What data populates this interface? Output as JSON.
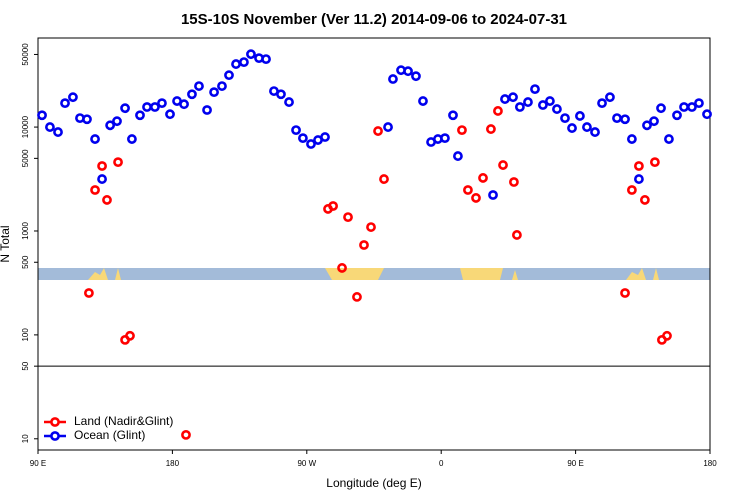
{
  "chart_data": {
    "type": "scatter",
    "title": "15S-10S November (Ver 11.2)   2014-09-06 to 2024-07-31",
    "x_label": "Longitude (deg E)",
    "y_label": "N Total",
    "log_scale": true,
    "xlim": [
      90,
      540
    ],
    "xticks": [
      {
        "value": 90,
        "label": "90 E"
      },
      {
        "value": 180,
        "label": "180"
      },
      {
        "value": 270,
        "label": "90 W"
      },
      {
        "value": 360,
        "label": "0"
      },
      {
        "value": 450,
        "label": "90 E"
      },
      {
        "value": 540,
        "label": "180"
      }
    ],
    "ylim": [
      7.8,
      72000
    ],
    "yticks": [
      10,
      50,
      100,
      500,
      1000,
      5000,
      10000,
      50000
    ],
    "hline": 50,
    "legend": "lower left",
    "series": [
      {
        "name": "Land (Nadir&Glint)",
        "color": "#ff0000",
        "x": [
          124.1,
          128.2,
          132.9,
          136.2,
          143.6,
          148.3,
          151.6,
          189.1,
          284.2,
          287.6,
          293.6,
          297.6,
          303.6,
          308.3,
          313.0,
          317.7,
          321.7,
          373.9,
          377.9,
          383.3,
          388.0,
          393.3,
          398.0,
          401.4,
          408.7,
          410.7,
          483.1,
          487.7,
          492.4,
          496.4,
          503.1,
          507.8,
          511.2
        ],
        "values": [
          253,
          2480,
          4220,
          1990,
          4600,
          89.5,
          98,
          10.9,
          1630,
          1740,
          441,
          1360,
          232,
          733,
          1090,
          9160,
          3160,
          9350,
          2480,
          2080,
          3240,
          9570,
          14300,
          4310,
          2960,
          916,
          253,
          2480,
          4220,
          1990,
          4600,
          89.5,
          98
        ]
      },
      {
        "name": "Ocean (Glint)",
        "color": "#0000ee",
        "x": [
          92.7,
          98.0,
          103.4,
          108.1,
          113.4,
          118.1,
          122.8,
          128.2,
          132.9,
          138.3,
          142.9,
          148.3,
          152.9,
          158.3,
          163.0,
          168.3,
          173.0,
          178.4,
          183.1,
          187.8,
          193.1,
          197.8,
          203.2,
          207.9,
          213.2,
          217.9,
          222.6,
          227.9,
          232.6,
          238.0,
          242.7,
          248.0,
          252.7,
          258.1,
          262.8,
          267.4,
          272.8,
          277.5,
          282.2,
          324.4,
          327.7,
          333.1,
          337.8,
          343.1,
          347.8,
          353.2,
          357.8,
          362.5,
          367.9,
          371.2,
          394.7,
          402.7,
          408.1,
          412.7,
          418.1,
          422.8,
          428.1,
          432.8,
          437.5,
          442.9,
          447.6,
          452.9,
          457.6,
          463.0,
          467.7,
          473.0,
          477.7,
          483.1,
          487.7,
          492.4,
          497.8,
          502.5,
          507.2,
          512.5,
          517.9,
          522.6,
          527.9,
          532.6,
          538.0
        ],
        "values": [
          13000,
          10000,
          8950,
          17000,
          19400,
          12200,
          11900,
          7670,
          3160,
          10400,
          11400,
          15200,
          7670,
          13000,
          15600,
          15600,
          17000,
          13300,
          17800,
          16600,
          20700,
          24800,
          14600,
          21700,
          24800,
          31600,
          40400,
          42200,
          50300,
          46100,
          45100,
          22200,
          20700,
          17400,
          9350,
          7830,
          6870,
          7500,
          8020,
          10000,
          29000,
          35300,
          34500,
          30900,
          17800,
          7180,
          7670,
          7830,
          13000,
          5260,
          2220,
          18600,
          19400,
          15600,
          17400,
          23200,
          16300,
          17800,
          14900,
          12200,
          9780,
          12800,
          10000,
          8950,
          17000,
          19400,
          12200,
          11900,
          7670,
          3160,
          10400,
          11400,
          15200,
          7670,
          13000,
          15600,
          15600,
          17000,
          13300
        ]
      }
    ]
  }
}
